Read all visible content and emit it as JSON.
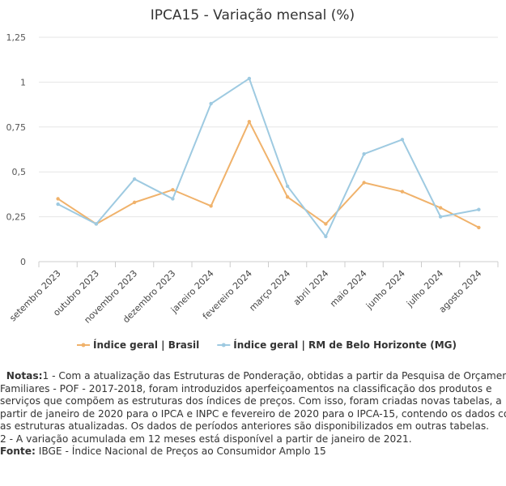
{
  "chart_data": {
    "type": "line",
    "title": "IPCA15 - Variação mensal (%)",
    "categories": [
      "setembro 2023",
      "outubro 2023",
      "novembro 2023",
      "dezembro 2023",
      "janeiro 2024",
      "fevereiro 2024",
      "março 2024",
      "abril 2024",
      "maio 2024",
      "junho 2024",
      "julho 2024",
      "agosto 2024"
    ],
    "yticks": [
      "0",
      "0,25",
      "0,5",
      "0,75",
      "1",
      "1,25"
    ],
    "ylim": [
      0,
      1.25
    ],
    "grid": true,
    "legend_position": "bottom",
    "series": [
      {
        "name": "Índice geral | Brasil",
        "color": "#f0b26b",
        "values": [
          0.35,
          0.21,
          0.33,
          0.4,
          0.31,
          0.78,
          0.36,
          0.21,
          0.44,
          0.39,
          0.3,
          0.19
        ]
      },
      {
        "name": "Índice geral | RM de Belo Horizonte (MG)",
        "color": "#9ecae1",
        "values": [
          0.32,
          0.21,
          0.46,
          0.35,
          0.88,
          1.02,
          0.42,
          0.14,
          0.6,
          0.68,
          0.25,
          0.29
        ]
      }
    ]
  },
  "notes": {
    "notes_label": "Notas:",
    "lines": [
      "1 - Com a atualização das Estruturas de Ponderação, obtidas a partir da Pesquisa de Orçamentos",
      "Familiares - POF - 2017-2018, foram introduzidos aperfeiçoamentos na classificação dos produtos e",
      "serviços que compõem as estruturas dos índices de preços. Com isso, foram criadas novas tabelas, a",
      "partir de janeiro de 2020 para o IPCA e INPC e fevereiro de 2020 para o IPCA-15, contendo os dados com",
      "as estruturas atualizadas. Os dados de períodos anteriores são disponibilizados em outras tabelas.",
      "2 - A variação acumulada em 12 meses está disponível a partir de janeiro de 2021."
    ],
    "source_label": "Fonte:",
    "source_text": "IBGE - Índice Nacional de Preços ao Consumidor Amplo 15"
  }
}
